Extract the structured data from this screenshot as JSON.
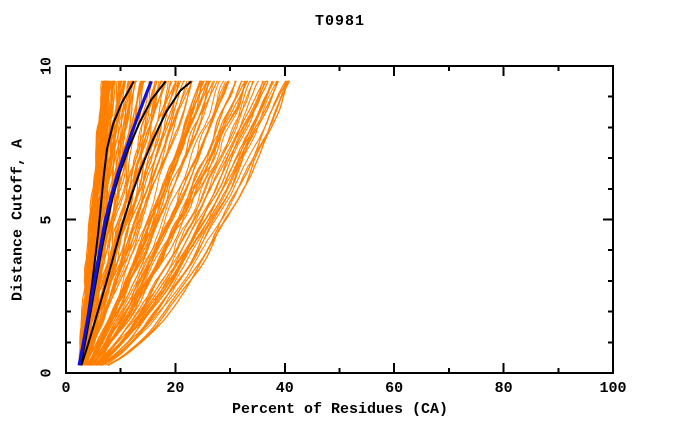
{
  "chart_data": {
    "type": "line",
    "title": "T0981",
    "xlabel": "Percent of Residues (CA)",
    "ylabel": "Distance Cutoff, A",
    "xlim": [
      0,
      100
    ],
    "ylim": [
      0,
      10
    ],
    "x_major_ticks": [
      0,
      20,
      40,
      60,
      80,
      100
    ],
    "x_minor_ticks": [
      10,
      30,
      50,
      70,
      90
    ],
    "y_major_ticks": [
      0,
      5,
      10
    ],
    "y_minor_ticks": [
      1,
      2,
      3,
      4,
      6,
      7,
      8,
      9
    ],
    "grid": false,
    "frame": "box-with-inward-mirrored-ticks",
    "legend": "none",
    "colors": {
      "background": "#ffffff",
      "axis": "#000000",
      "ensemble": "#ff7f00",
      "highlight_blue": "#1010d8",
      "highlight_black": "#000000"
    },
    "curves_y_span": [
      0.25,
      9.5
    ],
    "series": [
      {
        "name": "model-ensemble-orange",
        "color": "#ff7f00",
        "width": 1.1,
        "generator": {
          "seed": 20981,
          "count": 145,
          "start_x_range": [
            2.2,
            3.5
          ],
          "start_y": 0.25,
          "end_y": 9.5,
          "top_x_range": [
            6.8,
            41.0
          ],
          "density_skew": 2.1,
          "shape_exponent_left": 1.15,
          "shape_exponent_right": 0.6,
          "wobble_amplitude": 0.28
        }
      },
      {
        "name": "highlight-black-1",
        "color": "#000000",
        "width": 2,
        "points": [
          [
            2.5,
            0.25
          ],
          [
            3.3,
            1.0
          ],
          [
            4.0,
            1.9
          ],
          [
            4.7,
            2.8
          ],
          [
            5.3,
            3.7
          ],
          [
            5.9,
            4.6
          ],
          [
            6.4,
            5.5
          ],
          [
            6.9,
            6.4
          ],
          [
            7.5,
            7.3
          ],
          [
            8.6,
            8.1
          ],
          [
            10.2,
            8.8
          ],
          [
            12.4,
            9.5
          ]
        ]
      },
      {
        "name": "highlight-black-2",
        "color": "#000000",
        "width": 2,
        "points": [
          [
            2.6,
            0.25
          ],
          [
            3.4,
            0.9
          ],
          [
            4.2,
            1.7
          ],
          [
            5.0,
            2.5
          ],
          [
            5.8,
            3.3
          ],
          [
            6.6,
            4.1
          ],
          [
            7.5,
            4.9
          ],
          [
            8.5,
            5.7
          ],
          [
            9.8,
            6.5
          ],
          [
            11.4,
            7.3
          ],
          [
            13.3,
            8.1
          ],
          [
            15.6,
            8.9
          ],
          [
            18.2,
            9.5
          ]
        ]
      },
      {
        "name": "highlight-black-3",
        "color": "#000000",
        "width": 2,
        "points": [
          [
            2.8,
            0.25
          ],
          [
            3.8,
            0.8
          ],
          [
            5.0,
            1.5
          ],
          [
            6.3,
            2.3
          ],
          [
            7.6,
            3.1
          ],
          [
            9.0,
            4.0
          ],
          [
            10.4,
            4.9
          ],
          [
            12.0,
            5.8
          ],
          [
            13.8,
            6.7
          ],
          [
            15.9,
            7.6
          ],
          [
            18.3,
            8.5
          ],
          [
            20.9,
            9.2
          ],
          [
            22.9,
            9.5
          ]
        ]
      },
      {
        "name": "highlight-blue",
        "color": "#1010d8",
        "width": 3.2,
        "points": [
          [
            2.4,
            0.25
          ],
          [
            3.0,
            0.8
          ],
          [
            3.6,
            1.4
          ],
          [
            4.3,
            2.1
          ],
          [
            5.0,
            2.8
          ],
          [
            5.7,
            3.5
          ],
          [
            6.4,
            4.2
          ],
          [
            7.2,
            5.0
          ],
          [
            8.2,
            5.7
          ],
          [
            9.3,
            6.4
          ],
          [
            10.6,
            7.1
          ],
          [
            12.0,
            7.8
          ],
          [
            13.4,
            8.5
          ],
          [
            14.7,
            9.1
          ],
          [
            15.6,
            9.5
          ]
        ]
      }
    ]
  }
}
